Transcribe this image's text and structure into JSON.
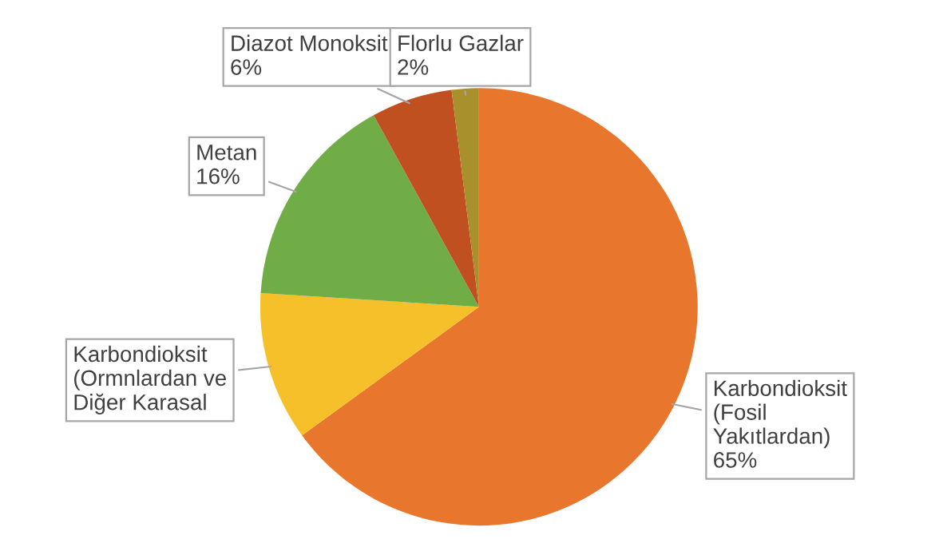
{
  "chart_data": {
    "type": "pie",
    "categories": [
      "Karbondioksit\n(Fosil\nYakıtlardan)",
      "Karbondioksit\n(Ormnlardan ve\nDiğer Karasal",
      "Metan",
      "Diazot Monoksit",
      "Florlu Gazlar"
    ],
    "values": [
      65,
      11,
      16,
      6,
      2
    ],
    "value_labels": [
      "65%",
      null,
      "16%",
      "6%",
      "2%"
    ],
    "colors": [
      "#e8762d",
      "#f5c02a",
      "#70ad47",
      "#c0501f",
      "#a8902c"
    ]
  }
}
